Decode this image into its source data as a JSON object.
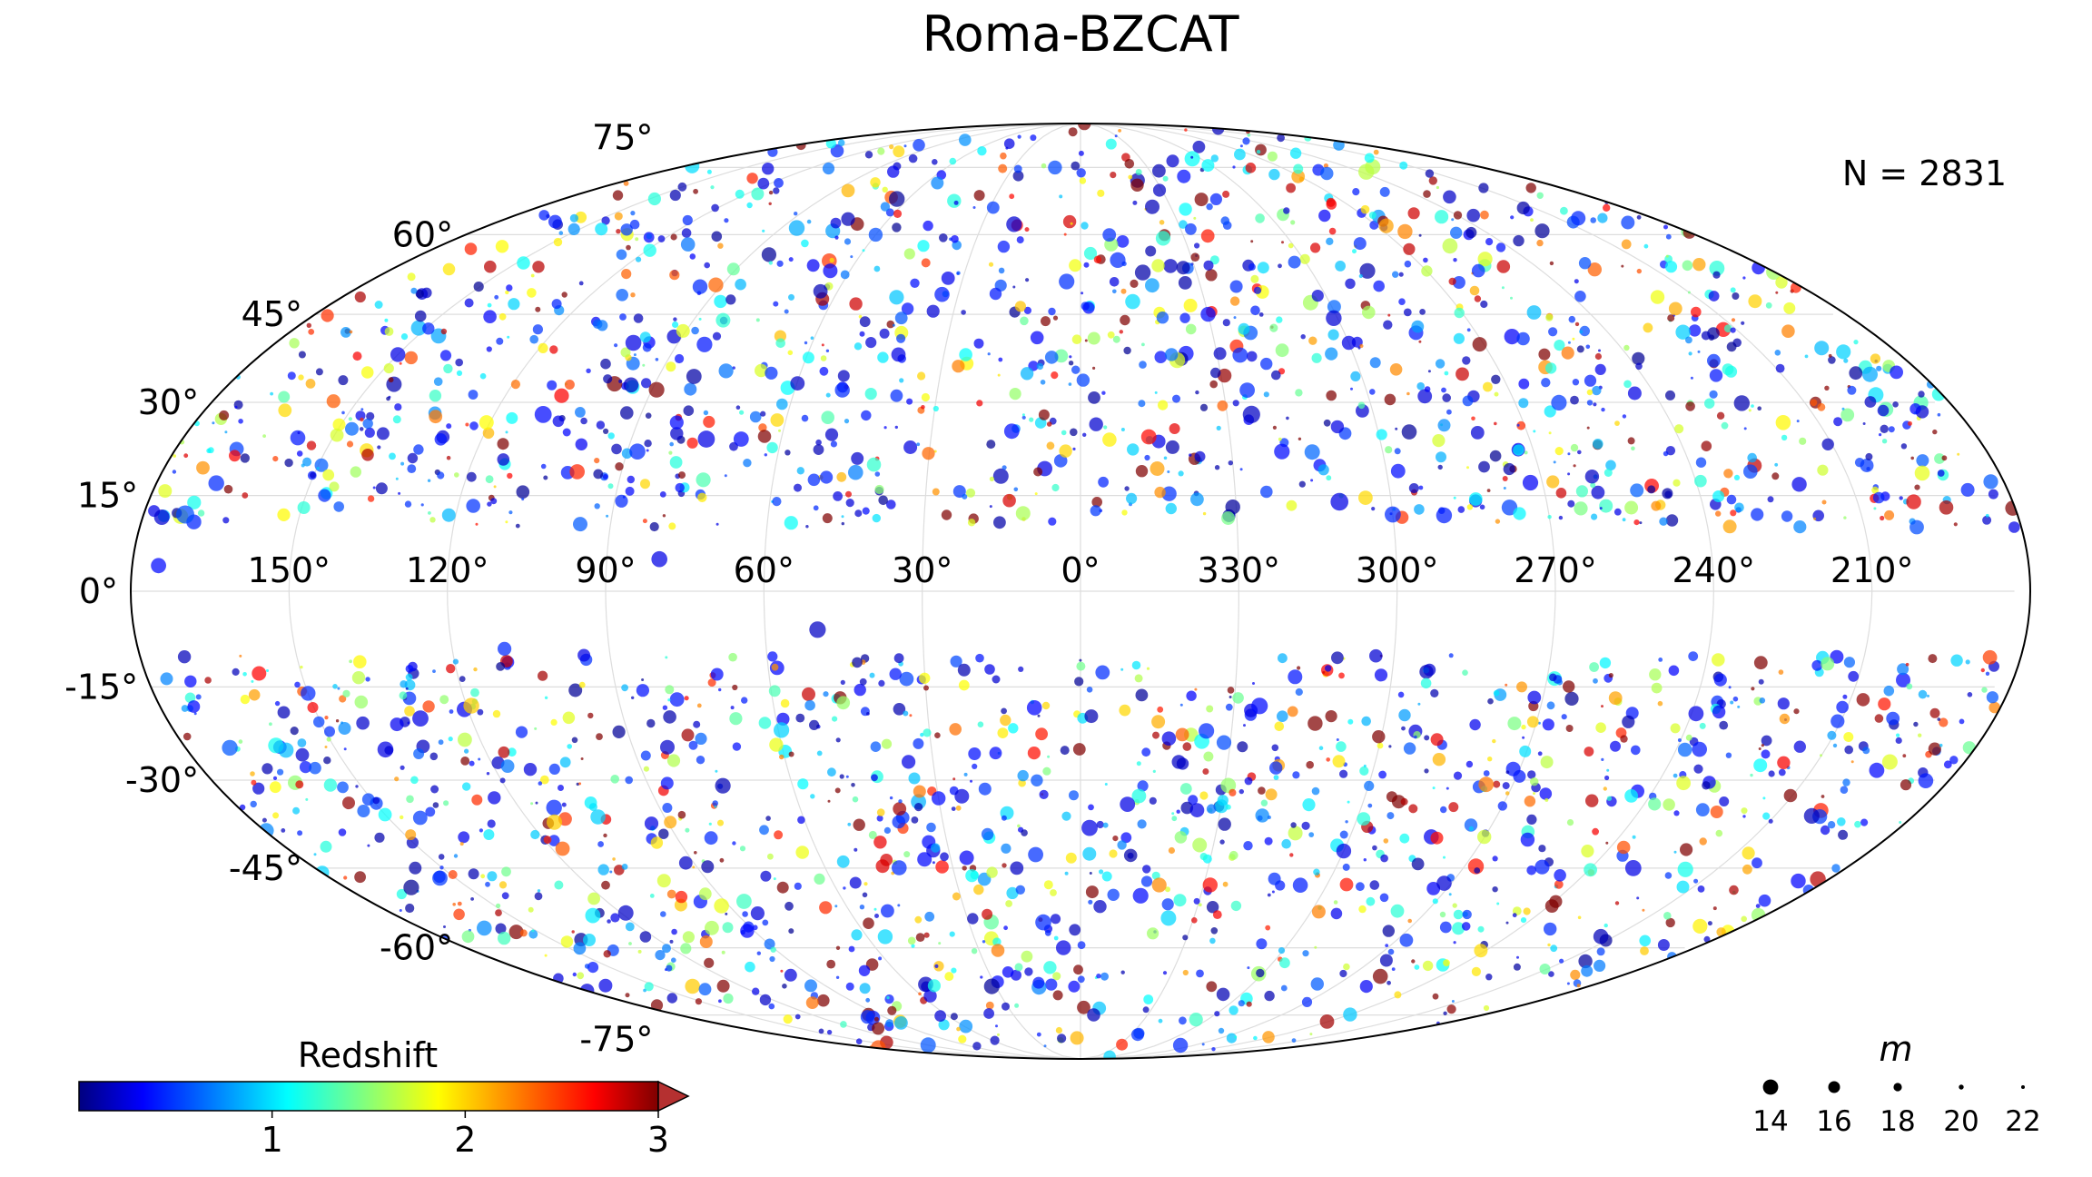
{
  "chart_data": {
    "type": "scatter",
    "title": "Roma-BZCAT",
    "projection": "mollweide",
    "annotation": "N = 2831",
    "lon_tick_labels": [
      "150°",
      "120°",
      "90°",
      "60°",
      "30°",
      "0°",
      "330°",
      "300°",
      "270°",
      "240°",
      "210°"
    ],
    "lat_tick_labels_left": [
      "60°",
      "45°",
      "30°",
      "15°",
      "0°",
      "-15°",
      "-30°",
      "-45°",
      "-60°"
    ],
    "lat_tick_labels_top_bottom": [
      "75°",
      "-75°"
    ],
    "grid": true,
    "galactic_plane_excluded_deg": 10,
    "colorbar": {
      "label": "Redshift",
      "ticks": [
        "1",
        "2",
        "3"
      ],
      "range": [
        0,
        3
      ],
      "extend": "max",
      "colormap": "jet",
      "alpha": 0.75
    },
    "size_legend": {
      "title": "m",
      "labels": [
        "14",
        "16",
        "18",
        "20",
        "22"
      ],
      "values": [
        14,
        16,
        18,
        20,
        22
      ]
    },
    "series": [
      {
        "points_lon_lat_z_m": [
          [
            172,
            12,
            0.6,
            14.5
          ],
          [
            150,
            38,
            0.3,
            16
          ],
          [
            110,
            28,
            0.4,
            15
          ],
          [
            88,
            22,
            0.5,
            15.5
          ],
          [
            75,
            24,
            0.3,
            15
          ],
          [
            68,
            24,
            0.4,
            15.8
          ],
          [
            50,
            32,
            0.5,
            16
          ],
          [
            40,
            38,
            0.3,
            16.2
          ],
          [
            325,
            28,
            0.2,
            14.8
          ],
          [
            320,
            22,
            0.4,
            15.6
          ],
          [
            310,
            14,
            0.3,
            14.6
          ],
          [
            300,
            12,
            0.5,
            15.4
          ],
          [
            308,
            26,
            0.3,
            16.8
          ],
          [
            260,
            18,
            0.2,
            16.4
          ],
          [
            230,
            12,
            0.5,
            16.9
          ],
          [
            175,
            4,
            0.4,
            15.8
          ],
          [
            130,
            -20,
            0.3,
            15.4
          ],
          [
            110,
            -9,
            0.5,
            16.5
          ],
          [
            95,
            -10,
            0.3,
            17
          ],
          [
            70,
            -13,
            0.4,
            17
          ],
          [
            150,
            -16,
            0.5,
            16
          ],
          [
            140,
            -25,
            0.3,
            15.5
          ],
          [
            35,
            -27,
            0.3,
            16.5
          ],
          [
            30,
            -33,
            0.4,
            16.4
          ],
          [
            350,
            -34,
            0.3,
            15.8
          ],
          [
            335,
            -22,
            0.5,
            15.6
          ],
          [
            325,
            -18,
            0.4,
            15.2
          ],
          [
            340,
            -27,
            0.2,
            16.4
          ],
          [
            358,
            -38,
            0.3,
            15.4
          ],
          [
            15,
            -45,
            0.2,
            16.6
          ],
          [
            10,
            -55,
            0.5,
            15.5
          ],
          [
            5,
            -60,
            0.3,
            16
          ],
          [
            -5,
            -52,
            0.2,
            16.8
          ],
          [
            -15,
            -50,
            0.4,
            15.6
          ],
          [
            -25,
            -35,
            0.3,
            16.2
          ],
          [
            -40,
            -28,
            0.5,
            16.8
          ],
          [
            -60,
            -42,
            0.3,
            16
          ],
          [
            -100,
            -40,
            0.4,
            16.4
          ],
          [
            -130,
            -45,
            0.3,
            15.4
          ],
          [
            -160,
            -20,
            0.5,
            16.6
          ],
          [
            200,
            10,
            0.6,
            16.2
          ],
          [
            185,
            35,
            0.4,
            16.6
          ],
          [
            100,
            40,
            0.3,
            15.5
          ],
          [
            95,
            50,
            0.5,
            16
          ],
          [
            60,
            60,
            0.6,
            16.4
          ],
          [
            -10,
            55,
            0.5,
            15.6
          ],
          [
            -30,
            45,
            0.4,
            16
          ],
          [
            -60,
            40,
            0.3,
            16.4
          ],
          [
            -20,
            38,
            0.7,
            16.8
          ],
          [
            -35,
            32,
            0.5,
            15.8
          ],
          [
            80,
            5,
            0.3,
            15.5
          ],
          [
            50,
            -6,
            0.2,
            15.2
          ]
        ]
      }
    ]
  }
}
